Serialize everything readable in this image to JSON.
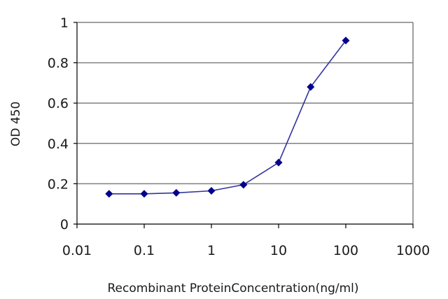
{
  "chart_data": {
    "type": "line",
    "title": "",
    "xlabel": "Recombinant ProteinConcentration(ng/ml)",
    "ylabel": "OD 450",
    "x_scale": "log",
    "xlim": [
      0.01,
      1000
    ],
    "ylim": [
      0,
      1
    ],
    "x_ticks": [
      0.01,
      0.1,
      1,
      10,
      100,
      1000
    ],
    "x_tick_labels": [
      "0.01",
      "0.1",
      "1",
      "10",
      "100",
      "1000"
    ],
    "y_ticks": [
      0,
      0.2,
      0.4,
      0.6,
      0.8,
      1
    ],
    "y_tick_labels": [
      "0",
      "0.2",
      "0.4",
      "0.6",
      "0.8",
      "1"
    ],
    "grid": "horizontal",
    "legend": "none",
    "series": [
      {
        "x": [
          0.03,
          0.1,
          0.3,
          1,
          3,
          10,
          30,
          100
        ],
        "y": [
          0.15,
          0.15,
          0.155,
          0.165,
          0.195,
          0.305,
          0.68,
          0.91
        ],
        "color": "#3333a0",
        "marker_color": "#00008b",
        "marker": "diamond"
      }
    ],
    "colors": {
      "plot_border": "#808080",
      "gridline": "#808080",
      "axis": "#000000"
    }
  }
}
